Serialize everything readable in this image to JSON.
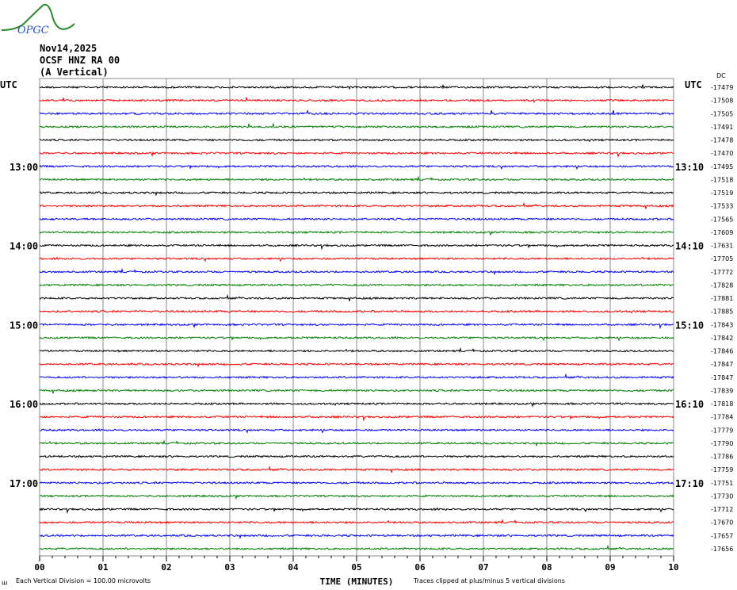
{
  "logo": {
    "text": "OPGC"
  },
  "header": {
    "date": "Nov14,2025",
    "station": "OCSF HNZ RA 00",
    "component": "(A Vertical)"
  },
  "chart_data": {
    "type": "line",
    "title": "Nov14,2025 OCSF HNZ RA 00 (A Vertical)",
    "xlabel": "TIME (MINUTES)",
    "xlim": [
      0,
      10
    ],
    "x_ticks": [
      "00",
      "01",
      "02",
      "03",
      "04",
      "05",
      "06",
      "07",
      "08",
      "09",
      "10"
    ],
    "left_axis_label": "UTC",
    "right_axis_label": "UTC",
    "dc_label": "DC",
    "left_time_labels": [
      {
        "row": 6,
        "text": "13:00"
      },
      {
        "row": 12,
        "text": "14:00"
      },
      {
        "row": 18,
        "text": "15:00"
      },
      {
        "row": 24,
        "text": "16:00"
      },
      {
        "row": 30,
        "text": "17:00"
      }
    ],
    "right_time_labels": [
      {
        "row": 6,
        "text": "13:10"
      },
      {
        "row": 12,
        "text": "14:10"
      },
      {
        "row": 18,
        "text": "15:10"
      },
      {
        "row": 24,
        "text": "16:10"
      },
      {
        "row": 30,
        "text": "17:10"
      }
    ],
    "trace_colors": [
      "#000000",
      "#ff0000",
      "#0000ff",
      "#007f00"
    ],
    "dc_offsets": [
      "-17479",
      "-17508",
      "-17505",
      "-17491",
      "-17478",
      "-17470",
      "-17495",
      "-17518",
      "-17519",
      "-17533",
      "-17565",
      "-17609",
      "-17631",
      "-17705",
      "-17772",
      "-17828",
      "-17881",
      "-17885",
      "-17843",
      "-17842",
      "-17846",
      "-17847",
      "-17847",
      "-17839",
      "-17818",
      "-17784",
      "-17779",
      "-17790",
      "-17786",
      "-17759",
      "-17751",
      "-17730",
      "-17712",
      "-17670",
      "-17657",
      "-17656"
    ],
    "grid": true
  },
  "footer": {
    "scale": "Each Vertical Division =  100.00 microvolts",
    "xlabel": "TIME (MINUTES)",
    "clip": "Traces clipped at plus/minus 5 vertical divisions",
    "corner": "ꟺ"
  }
}
